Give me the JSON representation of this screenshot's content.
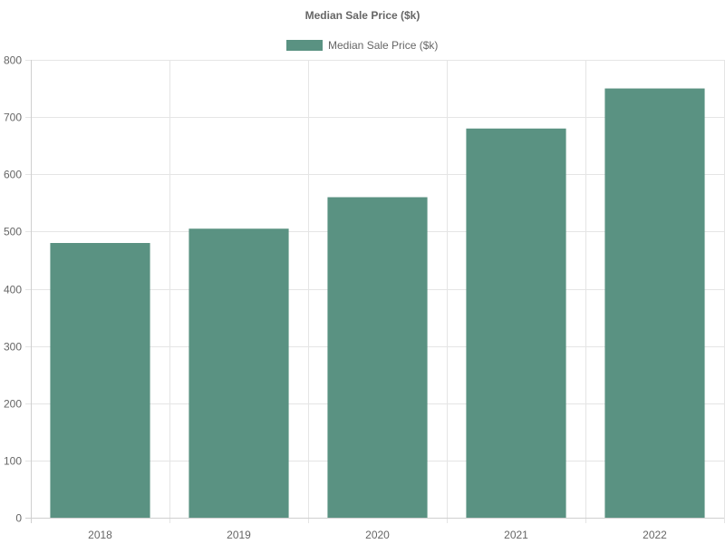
{
  "chart_data": {
    "type": "bar",
    "title": "Median Sale Price ($k)",
    "categories": [
      "2018",
      "2019",
      "2020",
      "2021",
      "2022"
    ],
    "series": [
      {
        "name": "Median Sale Price ($k)",
        "values": [
          480,
          505,
          560,
          680,
          750
        ],
        "color": "#5a9282"
      }
    ],
    "ylim": [
      0,
      800
    ],
    "yticks": [
      0,
      100,
      200,
      300,
      400,
      500,
      600,
      700,
      800
    ],
    "grid": true,
    "legend_position": "top"
  }
}
